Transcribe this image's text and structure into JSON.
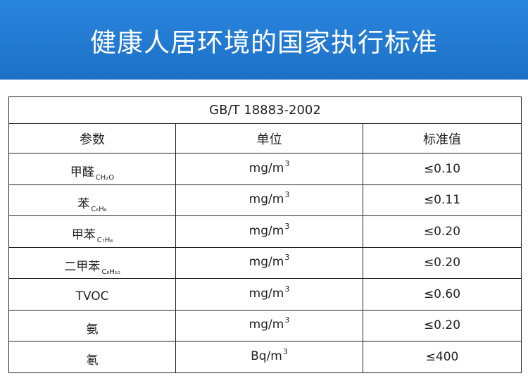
{
  "banner": {
    "title": "健康人居环境的国家执行标准"
  },
  "table": {
    "caption": "GB/T 18883-2002",
    "headers": {
      "param": "参数",
      "unit": "单位",
      "standard": "标准值"
    },
    "rows": [
      {
        "name": "甲醛",
        "formula": "CH₂O",
        "unit": "mg/m",
        "unit_sup": "3",
        "value": "≤0.10"
      },
      {
        "name": "苯",
        "formula": "C₆H₆",
        "unit": "mg/m",
        "unit_sup": "3",
        "value": "≤0.11"
      },
      {
        "name": "甲苯",
        "formula": "C₇H₈",
        "unit": "mg/m",
        "unit_sup": "3",
        "value": "≤0.20"
      },
      {
        "name": "二甲苯",
        "formula": "C₈H₁₀",
        "unit": "mg/m",
        "unit_sup": "3",
        "value": "≤0.20"
      },
      {
        "name": "TVOC",
        "formula": "",
        "unit": "mg/m",
        "unit_sup": "3",
        "value": "≤0.60"
      },
      {
        "name": "氨",
        "formula": "",
        "unit": "mg/m",
        "unit_sup": "3",
        "value": "≤0.20"
      },
      {
        "name": "氡",
        "formula": "",
        "unit": "Bq/m",
        "unit_sup": "3",
        "value": "≤400"
      }
    ]
  }
}
